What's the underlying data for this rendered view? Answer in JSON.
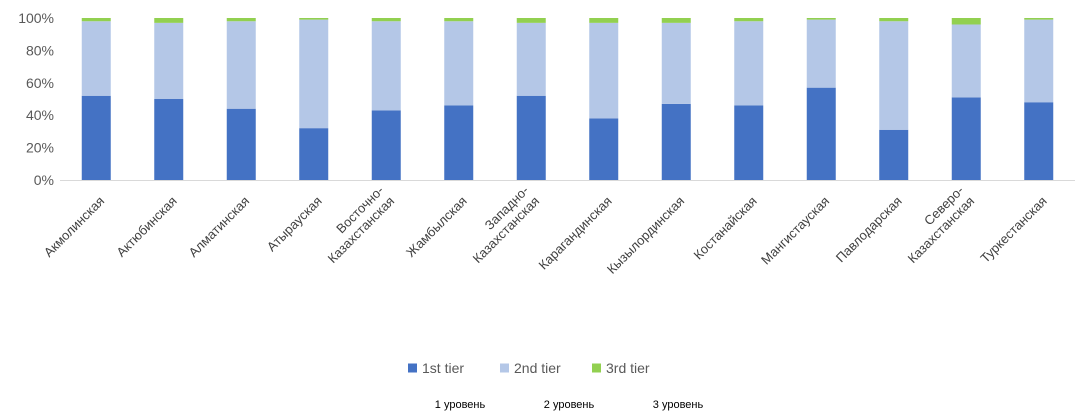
{
  "chart_data": {
    "type": "bar",
    "stacked": true,
    "percent_stacked": true,
    "categories": [
      [
        "Акмолинская"
      ],
      [
        "Актюбинская"
      ],
      [
        "Алматинская"
      ],
      [
        "Атырауская"
      ],
      [
        "Восточно-",
        "Казахстанская"
      ],
      [
        "Жамбылская"
      ],
      [
        "Западно-",
        "Казахстанская"
      ],
      [
        "Карагандинская"
      ],
      [
        "Кызылординская"
      ],
      [
        "Костанайская"
      ],
      [
        "Мангистауская"
      ],
      [
        "Павлодарская"
      ],
      [
        "Северо-",
        "Казахстанская"
      ],
      [
        "Туркестанская"
      ]
    ],
    "series": [
      {
        "name": "1st tier",
        "color": "#4472c4",
        "values": [
          52,
          50,
          44,
          32,
          43,
          46,
          52,
          38,
          47,
          46,
          57,
          31,
          51,
          48
        ]
      },
      {
        "name": "2nd tier",
        "color": "#b4c7e7",
        "values": [
          46,
          47,
          54,
          67,
          55,
          52,
          45,
          59,
          50,
          52,
          42,
          67,
          45,
          51
        ]
      },
      {
        "name": "3rd tier",
        "color": "#92d050",
        "values": [
          2,
          3,
          2,
          1,
          2,
          2,
          3,
          3,
          3,
          2,
          1,
          2,
          4,
          1
        ]
      }
    ],
    "ylim": [
      0,
      100
    ],
    "yticks": [
      "0%",
      "20%",
      "40%",
      "60%",
      "80%",
      "100%"
    ],
    "grid": false,
    "legend_position": "bottom",
    "secondary_labels": [
      "1 уровень",
      "2 уровень",
      "3 уровень"
    ]
  }
}
